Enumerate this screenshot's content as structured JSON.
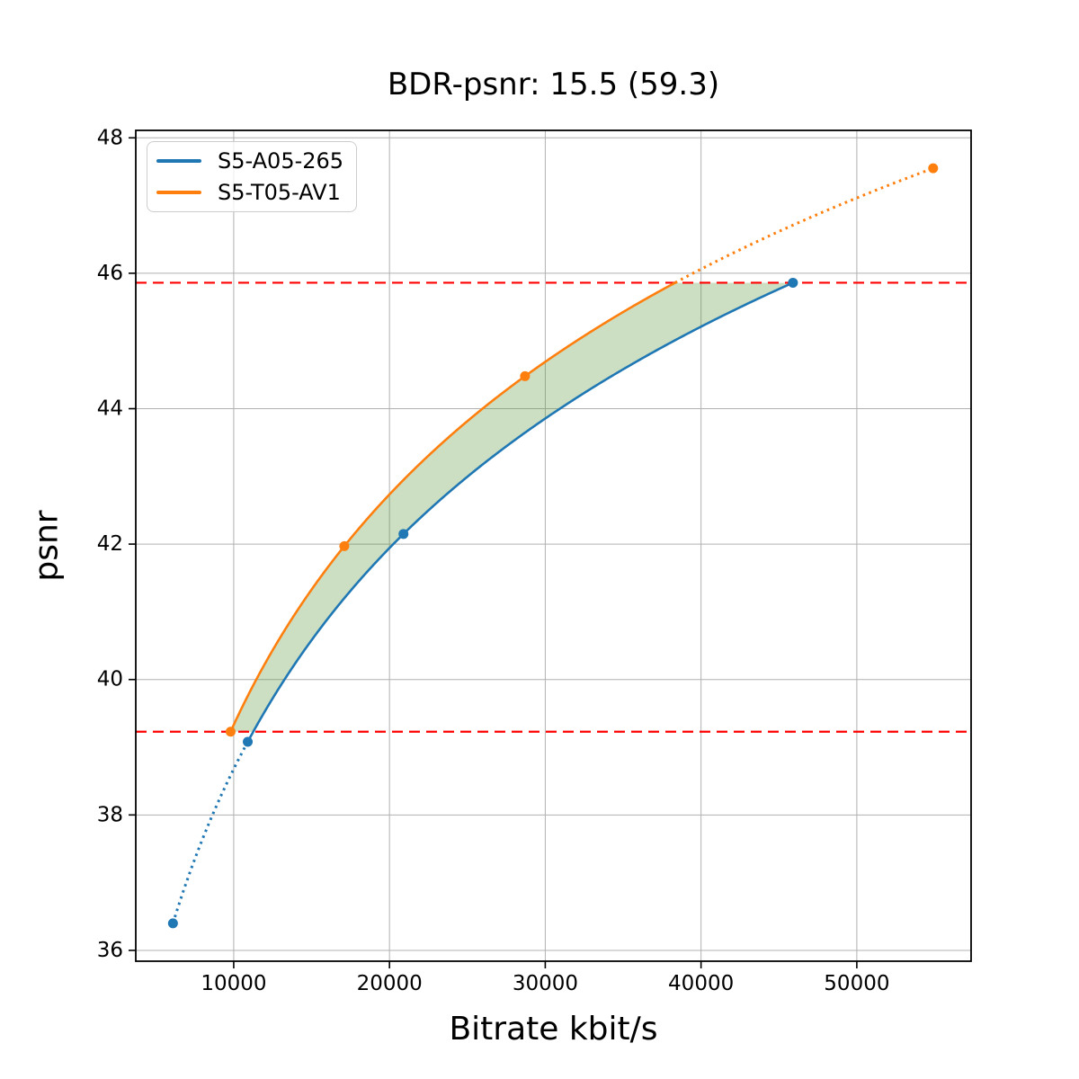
{
  "chart_data": {
    "type": "line",
    "title": "BDR-psnr: 15.5 (59.3)",
    "xlabel": "Bitrate kbit/s",
    "ylabel": "psnr",
    "xlim": [
      3713,
      57337
    ],
    "ylim": [
      35.84,
      48.11
    ],
    "x_ticks": [
      10000,
      20000,
      30000,
      40000,
      50000
    ],
    "y_ticks": [
      36,
      38,
      40,
      42,
      44,
      46,
      48
    ],
    "grid": true,
    "grid_color": "#b0b0b0",
    "axis_color": "#000000",
    "legend_position": "upper-left",
    "series": [
      {
        "name": "S5-A05-265",
        "color": "#1f77b4",
        "points": [
          [
            6100,
            36.4
          ],
          [
            10900,
            39.08
          ],
          [
            20900,
            42.15
          ],
          [
            45900,
            45.86
          ]
        ],
        "style": {
          "dotted_below_x": 10900
        }
      },
      {
        "name": "S5-T05-AV1",
        "color": "#ff7f0e",
        "points": [
          [
            9800,
            39.23
          ],
          [
            17100,
            41.97
          ],
          [
            28700,
            44.48
          ],
          [
            54900,
            47.55
          ]
        ],
        "style": {
          "dotted_above_y": 45.86
        }
      }
    ],
    "reference_lines": [
      {
        "y": 45.86,
        "color": "#ff0000",
        "style": "dashed"
      },
      {
        "y": 39.23,
        "color": "#ff0000",
        "style": "dashed"
      }
    ],
    "overlap_band": {
      "psnr_min": 39.23,
      "psnr_max": 45.86,
      "color": "#569637",
      "opacity": 0.3
    }
  }
}
